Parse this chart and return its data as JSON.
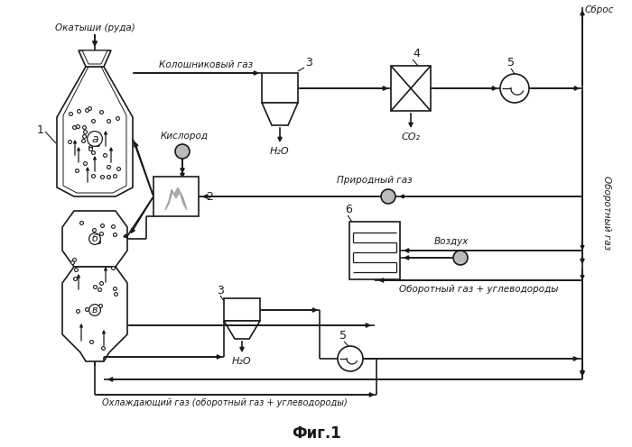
{
  "bg_color": "#ffffff",
  "line_color": "#1a1a1a",
  "title": "Фиг.1",
  "labels": {
    "ore": "Окатыши (руда)",
    "top_gas": "Колошниковый газ",
    "oxygen": "Кислород",
    "natural_gas": "Природный газ",
    "air": "Воздух",
    "recycle_gas_hc": "Оборотный газ + углеводороды",
    "cooling_gas": "Охлаждающий газ (оборотный газ + углеводороды)",
    "recycle_gas": "Оборотный газ",
    "release": "Сброс",
    "h2o_top": "H₂O",
    "h2o_bot": "H₂O",
    "co2": "CO₂"
  },
  "numbers": {
    "n1": "1",
    "n2": "2",
    "n3_top": "3",
    "n3_bot": "3",
    "n4": "4",
    "n5_top": "5",
    "n5_bot": "5",
    "n6": "6"
  }
}
